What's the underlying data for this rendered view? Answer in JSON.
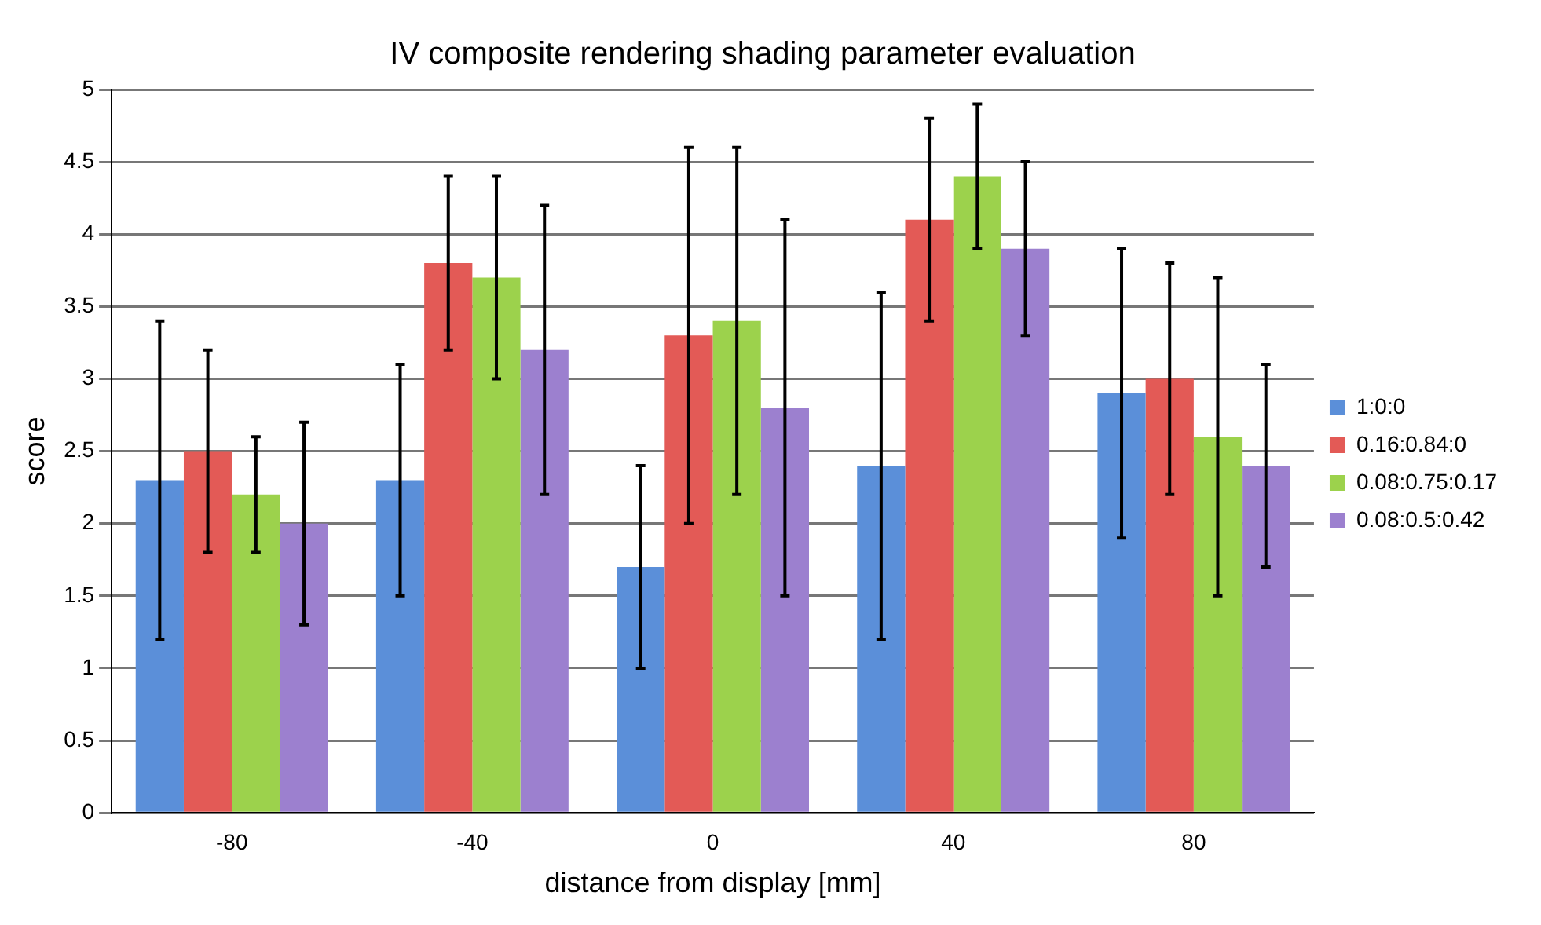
{
  "chart_data": {
    "type": "bar",
    "title": "IV composite rendering shading parameter evaluation",
    "xlabel": "distance from display [mm]",
    "ylabel": "score",
    "categories": [
      "-80",
      "-40",
      "0",
      "40",
      "80"
    ],
    "series": [
      {
        "name": "1:0:0",
        "color": "#5b8fd9",
        "values": [
          2.3,
          2.3,
          1.7,
          2.4,
          2.9
        ],
        "errors": [
          1.1,
          0.8,
          0.7,
          1.2,
          1.0
        ]
      },
      {
        "name": "0.16:0.84:0",
        "color": "#e35a56",
        "values": [
          2.5,
          3.8,
          3.3,
          4.1,
          3.0
        ],
        "errors": [
          0.7,
          0.6,
          1.3,
          0.7,
          0.8
        ]
      },
      {
        "name": "0.08:0.75:0.17",
        "color": "#9cd24c",
        "values": [
          2.2,
          3.7,
          3.4,
          4.4,
          2.6
        ],
        "errors": [
          0.4,
          0.7,
          1.2,
          0.5,
          1.1
        ]
      },
      {
        "name": "0.08:0.5:0.42",
        "color": "#9c80cf",
        "values": [
          2.0,
          3.2,
          2.8,
          3.9,
          2.4
        ],
        "errors": [
          0.7,
          1.0,
          1.3,
          0.6,
          0.7
        ]
      }
    ],
    "ylim": [
      0,
      5
    ],
    "yticks": [
      0,
      0.5,
      1,
      1.5,
      2,
      2.5,
      3,
      3.5,
      4,
      4.5,
      5
    ],
    "grid": "y",
    "legend": "right"
  }
}
